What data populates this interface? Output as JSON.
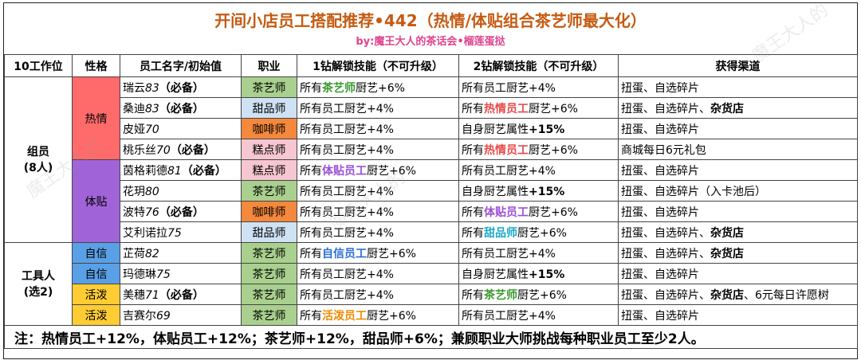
{
  "title": "开间小店员工搭配推荐•442（热情/体贴组合茶艺师最大化）",
  "subtitle": "by:魔王大人的茶话会•榴莲蛋挞",
  "watermark": "魔王大人的",
  "headers": [
    "10工作位",
    "性格",
    "员工名字/初始值",
    "职业",
    "1钻解锁技能（不可升级）",
    "2钻解锁技能（不可升级）",
    "获得渠道"
  ],
  "groups": {
    "members": "组员\n(8人)",
    "tools": "工具人\n(选2)"
  },
  "traits": {
    "hot": "热情",
    "warm": "体贴",
    "conf": "自信",
    "live": "活泼"
  },
  "rows": [
    {
      "name": "瑞云",
      "val": "83",
      "req": "（必备）",
      "job": "茶艺师",
      "s1a": "所有",
      "s1b": "茶艺师",
      "s1c": "厨艺+6%",
      "s2a": "所有员工厨艺+4%",
      "s2b": "",
      "s2c": "",
      "ch1": "扭蛋、自选碎片",
      "ch2": ""
    },
    {
      "name": "桑迪",
      "val": "83",
      "req": "（必备）",
      "job": "甜品师",
      "s1a": "所有员工厨艺+4%",
      "s1b": "",
      "s1c": "",
      "s2a": "所有",
      "s2b": "热情员工",
      "s2c": "厨艺+6%",
      "ch1": "扭蛋、自选碎片、",
      "ch2": "杂货店"
    },
    {
      "name": "皮娅",
      "val": "70",
      "req": "",
      "job": "咖啡师",
      "s1a": "所有员工厨艺+4%",
      "s1b": "",
      "s1c": "",
      "s2a": "自身厨艺属性",
      "s2b": "+15%",
      "s2c": "",
      "ch1": "扭蛋、自选碎片",
      "ch2": ""
    },
    {
      "name": "桃乐丝",
      "val": "70",
      "req": "（必备）",
      "job": "糕点师",
      "s1a": "所有员工厨艺+4%",
      "s1b": "",
      "s1c": "",
      "s2a": "所有",
      "s2b": "热情员工",
      "s2c": "厨艺+6%",
      "ch1": "商城每日6元礼包",
      "ch2": ""
    },
    {
      "name": "茵格莉德",
      "val": "81",
      "req": "（必备）",
      "job": "糕点师",
      "s1a": "所有",
      "s1b": "体贴员工",
      "s1c": "厨艺+6%",
      "s2a": "所有员工厨艺+4%",
      "s2b": "",
      "s2c": "",
      "ch1": "扭蛋、自选碎片",
      "ch2": ""
    },
    {
      "name": "花玥",
      "val": "80",
      "req": "",
      "job": "茶艺师",
      "s1a": "所有员工厨艺+4%",
      "s1b": "",
      "s1c": "",
      "s2a": "自身厨艺属性",
      "s2b": "+15%",
      "s2c": "",
      "ch1": "扭蛋、自选碎片（入卡池后）",
      "ch2": ""
    },
    {
      "name": "波特",
      "val": "76",
      "req": "（必备）",
      "job": "咖啡师",
      "s1a": "所有员工厨艺+4%",
      "s1b": "",
      "s1c": "",
      "s2a": "所有",
      "s2b": "体贴员工",
      "s2c": "厨艺+6%",
      "ch1": "扭蛋、自选碎片",
      "ch2": ""
    },
    {
      "name": "艾利诺拉",
      "val": "75",
      "req": "",
      "job": "甜品师",
      "s1a": "所有员工厨艺+4%",
      "s1b": "",
      "s1c": "",
      "s2a": "所有",
      "s2b": "甜品师",
      "s2c": "厨艺+6%",
      "ch1": "扭蛋、自选碎片、",
      "ch2": "杂货店"
    },
    {
      "name": "芷荷",
      "val": "82",
      "req": "",
      "job": "茶艺师",
      "s1a": "所有",
      "s1b": "自信员工",
      "s1c": "厨艺+6%",
      "s2a": "所有员工厨艺+4%",
      "s2b": "",
      "s2c": "",
      "ch1": "扭蛋、自选碎片、",
      "ch2": "杂货店"
    },
    {
      "name": "玛德琳",
      "val": "75",
      "req": "",
      "job": "茶艺师",
      "s1a": "所有员工厨艺+4%",
      "s1b": "",
      "s1c": "",
      "s2a": "自身厨艺属性",
      "s2b": "+15%",
      "s2c": "",
      "ch1": "扭蛋、自选碎片",
      "ch2": ""
    },
    {
      "name": "美穗",
      "val": "71",
      "req": "（必备）",
      "job": "茶艺师",
      "s1a": "所有员工厨艺+4%",
      "s1b": "",
      "s1c": "",
      "s2a": "所有",
      "s2b": "茶艺师",
      "s2c": "厨艺+6%",
      "ch1": "扭蛋、自选碎片、",
      "ch2": "杂货店",
      "ch3": "、6元每日许愿树"
    },
    {
      "name": "吉赛尔",
      "val": "69",
      "req": "",
      "job": "茶艺师",
      "s1a": "所有",
      "s1b": "活泼员工",
      "s1c": "厨艺+6%",
      "s2a": "所有员工厨艺+4%",
      "s2b": "",
      "s2c": "",
      "ch1": "扭蛋、自选碎片",
      "ch2": ""
    }
  ],
  "note": "注：热情员工+12%，体贴员工+12%；茶艺师+12%，甜品师+6%；兼顾职业大师挑战每种职业员工至少2人。",
  "colors": {
    "title": "#c55a11",
    "subtitle": "#e0448c",
    "hot": "#ff6b6b",
    "warm": "#a064d8",
    "conf": "#5aa0e6",
    "live": "#ffcc33"
  }
}
